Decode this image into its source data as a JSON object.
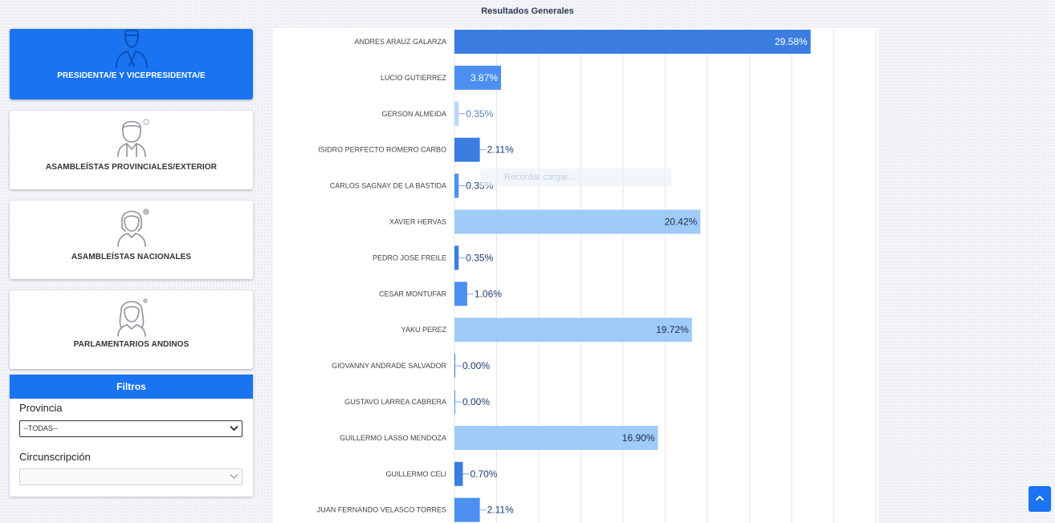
{
  "page": {
    "title": "Resultados Generales"
  },
  "categories": [
    {
      "label": "PRESIDENTA/E Y VICEPRESIDENTA/E",
      "icon": "male-official-avatar-icon",
      "active": true
    },
    {
      "label": "ASAMBLEÍSTAS PROVINCIALES/EXTERIOR",
      "icon": "male-avatar-icon",
      "active": false
    },
    {
      "label": "ASAMBLEÍSTAS NACIONALES",
      "icon": "female-avatar-icon",
      "active": false
    },
    {
      "label": "PARLAMENTARIOS ANDINOS",
      "icon": "female-long-hair-avatar-icon",
      "active": false
    }
  ],
  "filters": {
    "title": "Filtros",
    "province_label": "Provincia",
    "province_value": "--TODAS--",
    "circumscription_label": "Circunscripción",
    "circumscription_value": ""
  },
  "overlay_text": "Recordar cargar...",
  "colors": {
    "accent": "#1a73f0",
    "bar_dark": "#3b7de0",
    "bar_light": "#9ecbf7",
    "label_dark": "#1f3b73"
  },
  "chart_data": {
    "type": "bar",
    "orientation": "horizontal",
    "title": "",
    "xlim": [
      0,
      40
    ],
    "grid": true,
    "categories": [
      "ANDRES ARAUZ GALARZA",
      "LUCIO GUTIERREZ",
      "GERSON ALMEIDA",
      "ISIDRO PERFECTO ROMERO CARBO",
      "CARLOS SAGNAY DE LA BASTIDA",
      "XAVIER HERVAS",
      "PEDRO JOSE FREILE",
      "CESAR MONTUFAR",
      "YAKU PEREZ",
      "GIOVANNY ANDRADE SALVADOR",
      "GUSTAVO LARREA CABRERA",
      "GUILLERMO LASSO MENDOZA",
      "GUILLERMO CELI",
      "JUAN FERNANDO VELASCO TORRES"
    ],
    "values": [
      29.58,
      3.87,
      0.35,
      2.11,
      0.35,
      20.42,
      0.35,
      1.06,
      19.72,
      0.0,
      0.0,
      16.9,
      0.7,
      2.11
    ],
    "value_labels": [
      "29.58%",
      "3.87%",
      "0.35%",
      "2.11%",
      "0.35%",
      "20.42%",
      "0.35%",
      "1.06%",
      "19.72%",
      "0.00%",
      "0.00%",
      "16.90%",
      "0.70%",
      "2.11%"
    ],
    "bar_colors": [
      "#3b7de0",
      "#4d8ff0",
      "#b8d8f8",
      "#3b7de0",
      "#4d8ff0",
      "#9ecbf7",
      "#3b7de0",
      "#4d8ff0",
      "#9ecbf7",
      "#3b7de0",
      "#4d8ff0",
      "#9ecbf7",
      "#3b7de0",
      "#4d8ff0"
    ]
  }
}
